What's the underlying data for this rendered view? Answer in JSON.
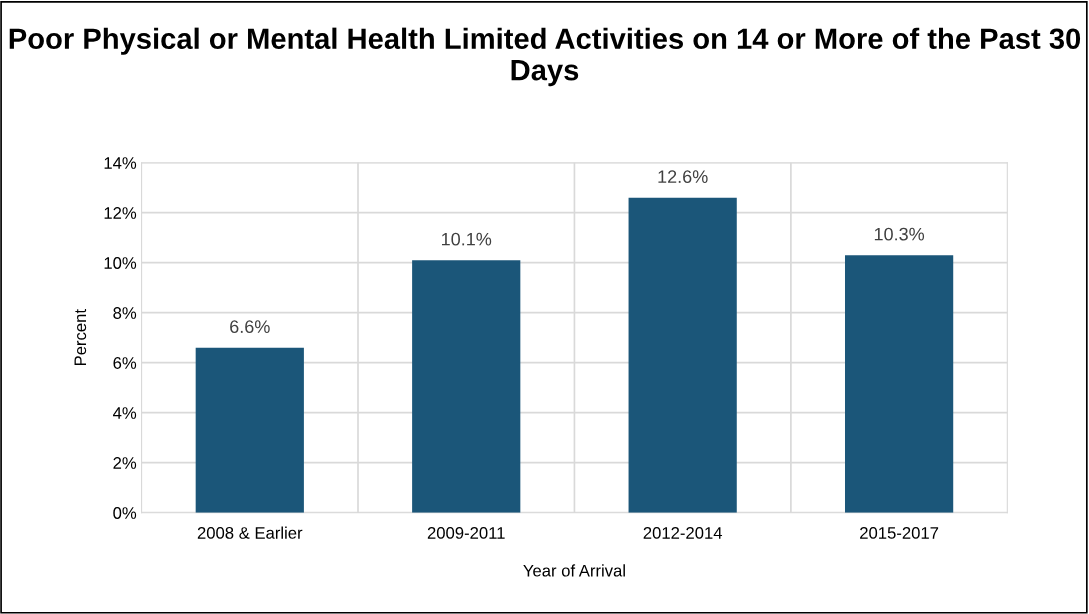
{
  "chart_data": {
    "type": "bar",
    "title": "Poor Physical or Mental Health Limited Activities on 14 or More of the Past 30 Days",
    "xlabel": "Year of Arrival",
    "ylabel": "Percent",
    "categories": [
      "2008 & Earlier",
      "2009-2011",
      "2012-2014",
      "2015-2017"
    ],
    "values": [
      6.6,
      10.1,
      12.6,
      10.3
    ],
    "value_labels": [
      "6.6%",
      "10.1%",
      "12.6%",
      "10.3%"
    ],
    "color": "#1b5679",
    "ylim": [
      0,
      14
    ],
    "yticks": [
      {
        "value": 0,
        "label": "0%"
      },
      {
        "value": 2,
        "label": "2%"
      },
      {
        "value": 4,
        "label": "4%"
      },
      {
        "value": 6,
        "label": "6%"
      },
      {
        "value": 8,
        "label": "8%"
      },
      {
        "value": 10,
        "label": "10%"
      },
      {
        "value": 12,
        "label": "12%"
      },
      {
        "value": 14,
        "label": "14%"
      }
    ],
    "grid": true,
    "legend": false
  }
}
